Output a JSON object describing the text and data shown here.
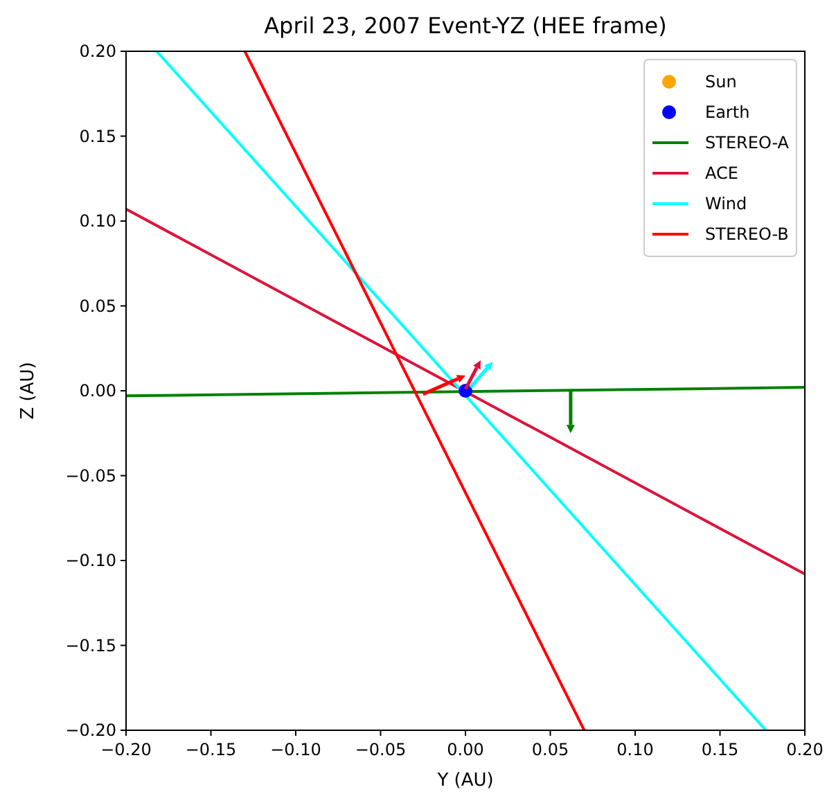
{
  "chart_data": {
    "type": "line",
    "title": "April 23, 2007 Event-YZ (HEE frame)",
    "xlabel": "Y (AU)",
    "ylabel": "Z (AU)",
    "xlim": [
      -0.2,
      0.2
    ],
    "ylim": [
      -0.2,
      0.2
    ],
    "xticks": [
      {
        "value": -0.2,
        "label": "−0.20"
      },
      {
        "value": -0.15,
        "label": "−0.15"
      },
      {
        "value": -0.1,
        "label": "−0.10"
      },
      {
        "value": -0.05,
        "label": "−0.05"
      },
      {
        "value": 0,
        "label": "0.00"
      },
      {
        "value": 0.05,
        "label": "0.05"
      },
      {
        "value": 0.1,
        "label": "0.10"
      },
      {
        "value": 0.15,
        "label": "0.15"
      },
      {
        "value": 0.2,
        "label": "0.20"
      }
    ],
    "yticks": [
      {
        "value": -0.2,
        "label": "−0.20"
      },
      {
        "value": -0.15,
        "label": "−0.15"
      },
      {
        "value": -0.1,
        "label": "−0.10"
      },
      {
        "value": -0.05,
        "label": "−0.05"
      },
      {
        "value": 0,
        "label": "0.00"
      },
      {
        "value": 0.05,
        "label": "0.05"
      },
      {
        "value": 0.1,
        "label": "0.10"
      },
      {
        "value": 0.15,
        "label": "0.15"
      },
      {
        "value": 0.2,
        "label": "0.20"
      }
    ],
    "legend": "top right",
    "series": [
      {
        "name": "Sun",
        "type": "scatter",
        "color": "#ffa500"
      },
      {
        "name": "Earth",
        "type": "scatter",
        "color": "#0000ff",
        "x": [
          0
        ],
        "values": [
          0
        ]
      },
      {
        "name": "STEREO-A",
        "color": "#008000",
        "x": [
          -0.2,
          0.2
        ],
        "values": [
          -0.003,
          0.002
        ]
      },
      {
        "name": "ACE",
        "color": "#dc143c",
        "x": [
          -0.2,
          0.2
        ],
        "values": [
          0.107,
          -0.108
        ]
      },
      {
        "name": "Wind",
        "color": "#00ffff",
        "x": [
          -0.182,
          0.177
        ],
        "values": [
          0.2,
          -0.2
        ]
      },
      {
        "name": "STEREO-B",
        "color": "#ff0000",
        "x": [
          -0.13,
          0.07
        ],
        "values": [
          0.2,
          -0.2
        ]
      }
    ]
  }
}
